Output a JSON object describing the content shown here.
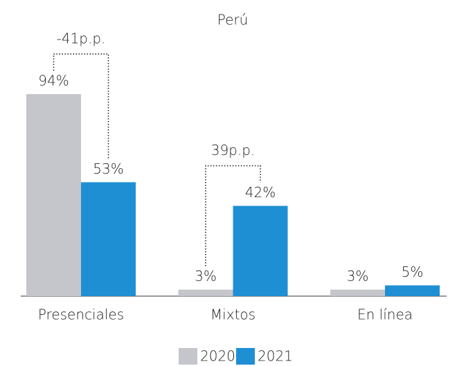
{
  "chart_data": {
    "type": "bar",
    "title": "Perú",
    "categories": [
      "Presenciales",
      "Mixtos",
      "En línea"
    ],
    "series": [
      {
        "name": "2020",
        "color": "#c4c6cc",
        "values": [
          94,
          3,
          3
        ],
        "value_labels": [
          "94%",
          "3%",
          "3%"
        ]
      },
      {
        "name": "2021",
        "color": "#1f8fd4",
        "values": [
          53,
          42,
          5
        ],
        "value_labels": [
          "53%",
          "42%",
          "5%"
        ]
      }
    ],
    "annotations": [
      "-41p.p.",
      "39p.p."
    ]
  }
}
